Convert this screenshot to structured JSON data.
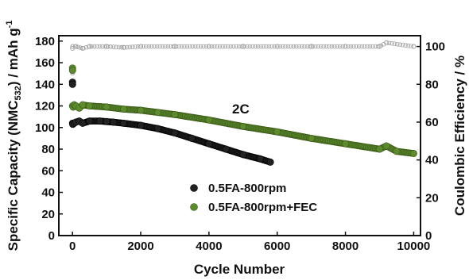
{
  "chart_data": {
    "type": "scatter",
    "xlabel": "Cycle Number",
    "ylabel_left": "Specific Capacity (NMC",
    "ylabel_left_sub": "532",
    "ylabel_left_unit": ") / mAh g",
    "ylabel_left_sup": "-1",
    "ylabel_right": "Coulombic Efficiency / %",
    "annotation": "2C",
    "xlim": [
      -400,
      10200
    ],
    "ylim_left": [
      0,
      185
    ],
    "ylim_right": [
      0,
      105.7
    ],
    "xticks": [
      0,
      2000,
      4000,
      6000,
      8000,
      10000
    ],
    "yticks_left": [
      0,
      20,
      40,
      60,
      80,
      100,
      120,
      140,
      160,
      180
    ],
    "yticks_right": [
      0,
      20,
      40,
      60,
      80,
      100
    ],
    "legend_position": "center",
    "series": [
      {
        "name": "0.5FA-800rpm",
        "axis": "left",
        "color": "#222222",
        "x": [
          1,
          2,
          3,
          10,
          50,
          100,
          200,
          300,
          500,
          800,
          1000,
          1200,
          1500,
          2000,
          2500,
          3000,
          3500,
          4000,
          4500,
          5000,
          5500,
          5800
        ],
        "y": [
          142,
          140,
          104,
          103,
          104,
          105,
          106,
          104,
          106,
          106,
          105.5,
          105,
          104,
          102,
          99,
          95,
          90,
          85,
          80,
          75,
          71,
          68
        ]
      },
      {
        "name": "0.5FA-800rpm+FEC",
        "axis": "left",
        "color": "#5c8a2c",
        "x": [
          1,
          2,
          3,
          20,
          50,
          100,
          200,
          300,
          500,
          1000,
          1500,
          2000,
          2500,
          3000,
          4000,
          5000,
          6000,
          7000,
          8000,
          9000,
          9200,
          9500,
          10000
        ],
        "y": [
          155,
          153,
          120,
          119,
          121,
          120,
          118,
          121,
          120,
          119,
          117,
          116,
          114,
          112,
          107,
          101,
          96,
          90,
          85,
          80,
          83,
          78,
          76
        ]
      },
      {
        "name": "Coulombic Efficiency",
        "axis": "right",
        "color": "#a8a8a8",
        "x": [
          1,
          2,
          3,
          10,
          100,
          300,
          500,
          1000,
          1500,
          2000,
          3000,
          4000,
          5000,
          6000,
          7000,
          8000,
          9000,
          9200,
          10000
        ],
        "y": [
          86,
          88,
          99,
          100,
          100,
          99,
          100,
          100,
          99.5,
          100,
          100,
          100,
          100,
          100,
          100,
          100,
          100,
          102,
          100
        ]
      }
    ],
    "grid": false
  }
}
